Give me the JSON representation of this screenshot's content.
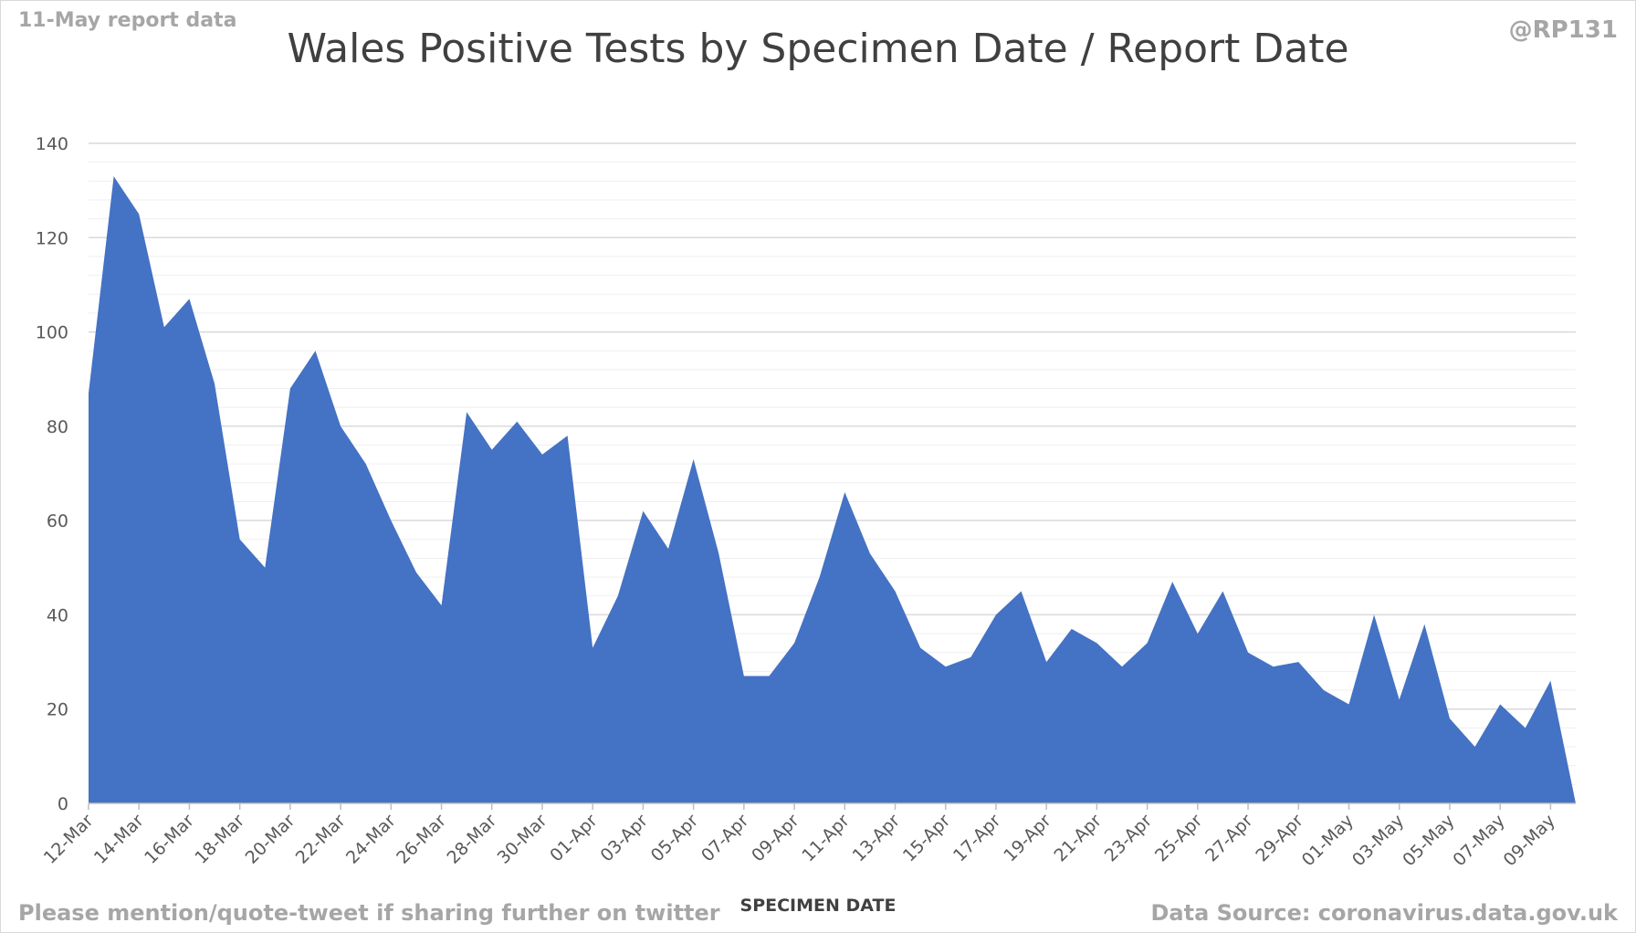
{
  "header": {
    "report_label": "11-May report data",
    "handle": "@RP131"
  },
  "footer": {
    "left_text": "Please mention/quote-tweet if sharing further on twitter",
    "right_text": "Data Source: coronavirus.data.gov.uk"
  },
  "colors": {
    "area_fill": "#4472c4",
    "gridline_major": "#d9d9d9",
    "gridline_minor": "#efefef",
    "axis": "#bfbfbf"
  },
  "chart_data": {
    "type": "area",
    "title": "Wales Positive Tests by Specimen Date / Report Date",
    "xlabel": "SPECIMEN DATE",
    "ylabel": "",
    "ylim": [
      0,
      140
    ],
    "yticks": [
      0,
      20,
      40,
      60,
      80,
      100,
      120,
      140
    ],
    "minor_grid_step": 4,
    "grid": true,
    "legend": "none",
    "x": [
      "12-Mar",
      "13-Mar",
      "14-Mar",
      "15-Mar",
      "16-Mar",
      "17-Mar",
      "18-Mar",
      "19-Mar",
      "20-Mar",
      "21-Mar",
      "22-Mar",
      "23-Mar",
      "24-Mar",
      "25-Mar",
      "26-Mar",
      "27-Mar",
      "28-Mar",
      "29-Mar",
      "30-Mar",
      "31-Mar",
      "01-Apr",
      "02-Apr",
      "03-Apr",
      "04-Apr",
      "05-Apr",
      "06-Apr",
      "07-Apr",
      "08-Apr",
      "09-Apr",
      "10-Apr",
      "11-Apr",
      "12-Apr",
      "13-Apr",
      "14-Apr",
      "15-Apr",
      "16-Apr",
      "17-Apr",
      "18-Apr",
      "19-Apr",
      "20-Apr",
      "21-Apr",
      "22-Apr",
      "23-Apr",
      "24-Apr",
      "25-Apr",
      "26-Apr",
      "27-Apr",
      "28-Apr",
      "29-Apr",
      "30-Apr",
      "01-May",
      "02-May",
      "03-May",
      "04-May",
      "05-May",
      "06-May",
      "07-May",
      "08-May",
      "09-May",
      "10-May"
    ],
    "x_tick_labels": [
      "12-Mar",
      "14-Mar",
      "16-Mar",
      "18-Mar",
      "20-Mar",
      "22-Mar",
      "24-Mar",
      "26-Mar",
      "28-Mar",
      "30-Mar",
      "01-Apr",
      "03-Apr",
      "05-Apr",
      "07-Apr",
      "09-Apr",
      "11-Apr",
      "13-Apr",
      "15-Apr",
      "17-Apr",
      "19-Apr",
      "21-Apr",
      "23-Apr",
      "25-Apr",
      "27-Apr",
      "29-Apr",
      "01-May",
      "03-May",
      "05-May",
      "07-May",
      "09-May"
    ],
    "series": [
      {
        "values": [
          87,
          133,
          125,
          101,
          107,
          89,
          56,
          50,
          88,
          96,
          80,
          72,
          60,
          49,
          42,
          83,
          75,
          81,
          74,
          78,
          33,
          44,
          62,
          54,
          73,
          53,
          27,
          27,
          34,
          48,
          66,
          53,
          45,
          33,
          29,
          31,
          40,
          45,
          30,
          37,
          34,
          29,
          34,
          47,
          36,
          45,
          32,
          29,
          30,
          24,
          21,
          40,
          22,
          38,
          18,
          12,
          21,
          16,
          26,
          0
        ]
      }
    ]
  }
}
